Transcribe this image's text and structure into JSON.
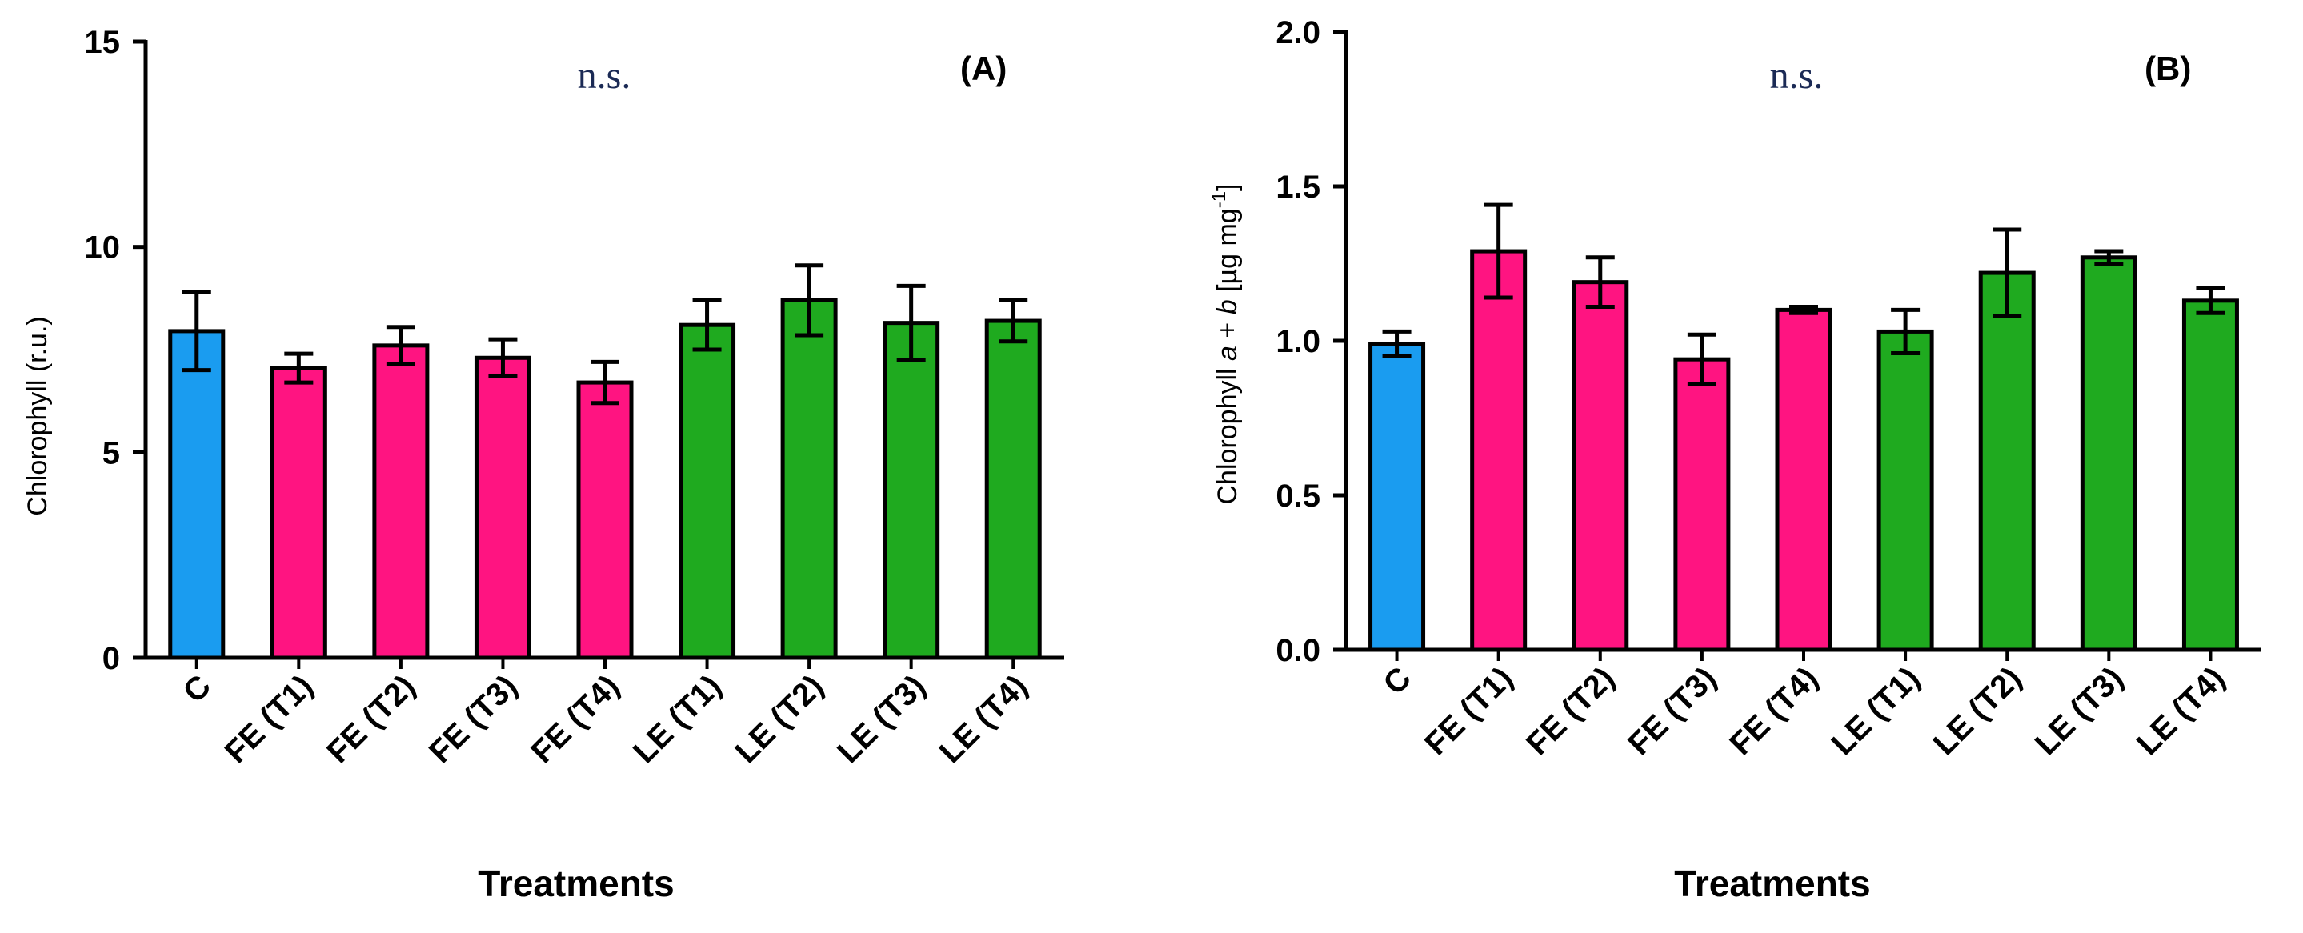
{
  "colors": {
    "control": "#1a9cf0",
    "fe": "#ff1481",
    "le": "#1faa1f",
    "stroke": "#000000"
  },
  "chart_data": [
    {
      "type": "bar",
      "panel_label": "(A)",
      "annotation": "n.s.",
      "xlabel": "Treatments",
      "ylabel": "Chlorophyll (r.u.)",
      "ylim": [
        0,
        15
      ],
      "yticks": [
        0,
        5,
        10,
        15
      ],
      "ytick_labels": [
        "0",
        "5",
        "10",
        "15"
      ],
      "categories": [
        "C",
        "FE (T1)",
        "FE (T2)",
        "FE (T3)",
        "FE (T4)",
        "LE (T1)",
        "LE (T2)",
        "LE (T3)",
        "LE (T4)"
      ],
      "groups": [
        "control",
        "fe",
        "fe",
        "fe",
        "fe",
        "le",
        "le",
        "le",
        "le"
      ],
      "values": [
        7.95,
        7.05,
        7.6,
        7.3,
        6.7,
        8.1,
        8.7,
        8.15,
        8.2
      ],
      "errors": [
        0.95,
        0.35,
        0.45,
        0.45,
        0.5,
        0.6,
        0.85,
        0.9,
        0.5
      ]
    },
    {
      "type": "bar",
      "panel_label": "(B)",
      "annotation": "n.s.",
      "xlabel": "Treatments",
      "ylabel": {
        "prefix": "Chlorophyll ",
        "a": "a",
        "plus": " + ",
        "b": "b",
        "unit": " [µg mg",
        "sup": "-1",
        "close": "]"
      },
      "ylim": [
        0,
        2
      ],
      "yticks": [
        0,
        0.5,
        1.0,
        1.5,
        2.0
      ],
      "ytick_labels": [
        "0.0",
        "0.5",
        "1.0",
        "1.5",
        "2.0"
      ],
      "categories": [
        "C",
        "FE (T1)",
        "FE (T2)",
        "FE (T3)",
        "FE (T4)",
        "LE (T1)",
        "LE (T2)",
        "LE (T3)",
        "LE (T4)"
      ],
      "groups": [
        "control",
        "fe",
        "fe",
        "fe",
        "fe",
        "le",
        "le",
        "le",
        "le"
      ],
      "values": [
        0.99,
        1.29,
        1.19,
        0.94,
        1.1,
        1.03,
        1.22,
        1.27,
        1.13
      ],
      "errors": [
        0.04,
        0.15,
        0.08,
        0.08,
        0.01,
        0.07,
        0.14,
        0.02,
        0.04
      ]
    }
  ]
}
